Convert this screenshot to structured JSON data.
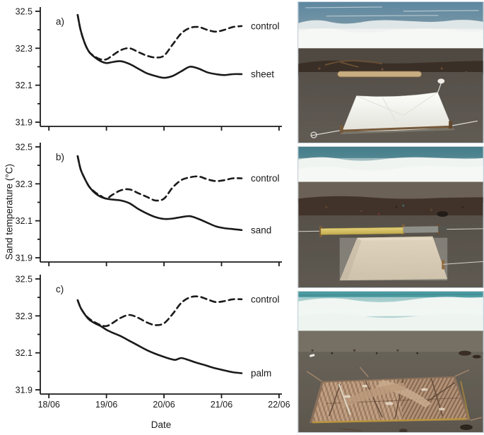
{
  "figure": {
    "y_axis_label": "Sand temperature (°C)",
    "x_axis_label": "Date"
  },
  "colors": {
    "chart_line": "#1a1a1a",
    "background": "#ffffff",
    "ocean_blue": "#5d87a0",
    "ocean_teal": "#47808c",
    "ocean_turquoise": "#4899a0",
    "foam_white": "#edf1f1",
    "dark_sand": "#6f685e",
    "light_sand_patch": "#cdbca1",
    "sheet_white": "#f6f6f2",
    "beam_yellow": "#d4bd5e",
    "palm_tan": "#b3947a"
  },
  "chart_data": [
    {
      "type": "line",
      "panel_label": "a)",
      "ylim": [
        31.9,
        32.5
      ],
      "yticks": [
        31.9,
        32.1,
        32.3,
        32.5
      ],
      "yticks_minor": [
        32.0,
        32.2,
        32.4
      ],
      "xlim": [
        17.85,
        22.05
      ],
      "xticks": [
        18,
        19,
        20,
        21,
        22
      ],
      "xtick_labels": [
        "18/06",
        "19/06",
        "20/06",
        "21/06",
        "22/06"
      ],
      "show_x_tick_labels": false,
      "series": [
        {
          "name": "control",
          "style": "dashed",
          "x": [
            18.5,
            18.55,
            18.62,
            18.7,
            18.8,
            18.9,
            19.0,
            19.1,
            19.25,
            19.4,
            19.55,
            19.7,
            19.85,
            20.0,
            20.15,
            20.3,
            20.45,
            20.6,
            20.75,
            20.9,
            21.05,
            21.2,
            21.35
          ],
          "y": [
            32.48,
            32.4,
            32.33,
            32.28,
            32.255,
            32.24,
            32.24,
            32.26,
            32.29,
            32.3,
            32.28,
            32.26,
            32.25,
            32.26,
            32.32,
            32.38,
            32.41,
            32.415,
            32.4,
            32.39,
            32.4,
            32.415,
            32.42
          ]
        },
        {
          "name": "sheet",
          "style": "solid",
          "x": [
            18.5,
            18.55,
            18.62,
            18.7,
            18.8,
            18.9,
            19.0,
            19.1,
            19.25,
            19.4,
            19.55,
            19.7,
            19.85,
            20.0,
            20.15,
            20.3,
            20.45,
            20.6,
            20.75,
            20.9,
            21.05,
            21.2,
            21.35
          ],
          "y": [
            32.48,
            32.4,
            32.33,
            32.28,
            32.25,
            32.23,
            32.22,
            32.225,
            32.23,
            32.215,
            32.19,
            32.165,
            32.15,
            32.14,
            32.15,
            32.175,
            32.2,
            32.19,
            32.17,
            32.16,
            32.155,
            32.16,
            32.16
          ]
        }
      ]
    },
    {
      "type": "line",
      "panel_label": "b)",
      "ylim": [
        31.9,
        32.5
      ],
      "yticks": [
        31.9,
        32.1,
        32.3,
        32.5
      ],
      "yticks_minor": [
        32.0,
        32.2,
        32.4
      ],
      "xlim": [
        17.85,
        22.05
      ],
      "xticks": [
        18,
        19,
        20,
        21,
        22
      ],
      "xtick_labels": [
        "18/06",
        "19/06",
        "20/06",
        "21/06",
        "22/06"
      ],
      "show_x_tick_labels": false,
      "series": [
        {
          "name": "control",
          "style": "dashed",
          "x": [
            18.5,
            18.55,
            18.62,
            18.7,
            18.8,
            18.9,
            19.0,
            19.1,
            19.25,
            19.4,
            19.55,
            19.7,
            19.85,
            20.0,
            20.15,
            20.3,
            20.45,
            20.6,
            20.75,
            20.9,
            21.05,
            21.2,
            21.35
          ],
          "y": [
            32.45,
            32.38,
            32.33,
            32.285,
            32.255,
            32.235,
            32.22,
            32.24,
            32.265,
            32.27,
            32.25,
            32.23,
            32.21,
            32.22,
            32.28,
            32.32,
            32.335,
            32.34,
            32.325,
            32.315,
            32.32,
            32.33,
            32.33
          ]
        },
        {
          "name": "sand",
          "style": "solid",
          "x": [
            18.5,
            18.55,
            18.62,
            18.7,
            18.8,
            18.9,
            19.0,
            19.1,
            19.25,
            19.4,
            19.55,
            19.7,
            19.85,
            20.0,
            20.15,
            20.3,
            20.45,
            20.6,
            20.75,
            20.9,
            21.05,
            21.2,
            21.35
          ],
          "y": [
            32.45,
            32.38,
            32.33,
            32.285,
            32.25,
            32.23,
            32.22,
            32.215,
            32.21,
            32.195,
            32.165,
            32.14,
            32.12,
            32.11,
            32.112,
            32.12,
            32.125,
            32.11,
            32.09,
            32.07,
            32.06,
            32.055,
            32.05
          ]
        }
      ]
    },
    {
      "type": "line",
      "panel_label": "c)",
      "ylim": [
        31.9,
        32.5
      ],
      "yticks": [
        31.9,
        32.1,
        32.3,
        32.5
      ],
      "yticks_minor": [
        32.0,
        32.2,
        32.4
      ],
      "xlim": [
        17.85,
        22.05
      ],
      "xticks": [
        18,
        19,
        20,
        21,
        22
      ],
      "xtick_labels": [
        "18/06",
        "19/06",
        "20/06",
        "21/06",
        "22/06"
      ],
      "show_x_tick_labels": true,
      "series": [
        {
          "name": "control",
          "style": "dashed",
          "x": [
            18.5,
            18.55,
            18.62,
            18.7,
            18.8,
            18.9,
            19.0,
            19.1,
            19.25,
            19.4,
            19.55,
            19.7,
            19.85,
            20.0,
            20.15,
            20.3,
            20.45,
            20.6,
            20.75,
            20.9,
            21.05,
            21.2,
            21.35
          ],
          "y": [
            32.385,
            32.345,
            32.31,
            32.285,
            32.265,
            32.25,
            32.245,
            32.26,
            32.29,
            32.305,
            32.29,
            32.265,
            32.25,
            32.26,
            32.31,
            32.37,
            32.4,
            32.405,
            32.39,
            32.375,
            32.38,
            32.39,
            32.39
          ]
        },
        {
          "name": "palm",
          "style": "solid",
          "x": [
            18.5,
            18.55,
            18.62,
            18.7,
            18.8,
            18.9,
            19.0,
            19.1,
            19.25,
            19.4,
            19.55,
            19.7,
            19.85,
            20.0,
            20.1,
            20.2,
            20.3,
            20.42,
            20.55,
            20.7,
            20.85,
            21.05,
            21.2,
            21.35
          ],
          "y": [
            32.385,
            32.345,
            32.31,
            32.28,
            32.26,
            32.245,
            32.225,
            32.21,
            32.19,
            32.165,
            32.14,
            32.115,
            32.095,
            32.078,
            32.068,
            32.062,
            32.072,
            32.062,
            32.048,
            32.035,
            32.02,
            32.005,
            31.995,
            31.99
          ]
        }
      ]
    }
  ],
  "photos": [
    {
      "name": "sheet-treatment-photo",
      "description": "Beach plot with a white sheet stretched over a wooden frame on dark sand, driftwood and breaking surf behind"
    },
    {
      "name": "sand-treatment-photo",
      "description": "Beach plot covered with a square of light-coloured sand, yellow wooden beam behind, teal surf in background"
    },
    {
      "name": "palm-treatment-photo",
      "description": "Beach plot covered with dried palm leaves on dark sand, turquoise surf in background"
    }
  ]
}
